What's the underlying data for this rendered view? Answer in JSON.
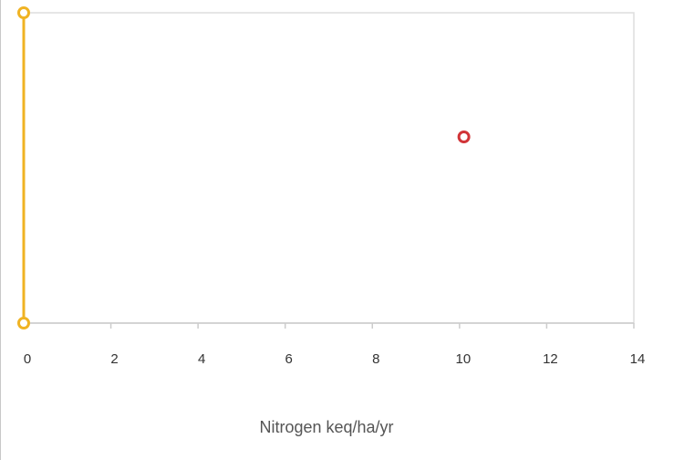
{
  "chart_data": {
    "type": "scatter",
    "xlabel": "Nitrogen keq/ha/yr",
    "xlim": [
      0,
      14
    ],
    "x_ticks": [
      0,
      2,
      4,
      6,
      8,
      10,
      12,
      14
    ],
    "x_tick_labels": [
      "0",
      "2",
      "4",
      "6",
      "8",
      "10",
      "12",
      "14"
    ],
    "ylim": [
      0,
      1
    ],
    "grid": false,
    "series": [
      {
        "type": "line-with-markers",
        "color": "#f0b323",
        "points": [
          {
            "x": 0,
            "y": 0
          },
          {
            "x": 0,
            "y": 1
          }
        ]
      },
      {
        "type": "scatter",
        "color": "#d13438",
        "points": [
          {
            "x": 10.1,
            "y": 0.6
          }
        ]
      }
    ]
  }
}
